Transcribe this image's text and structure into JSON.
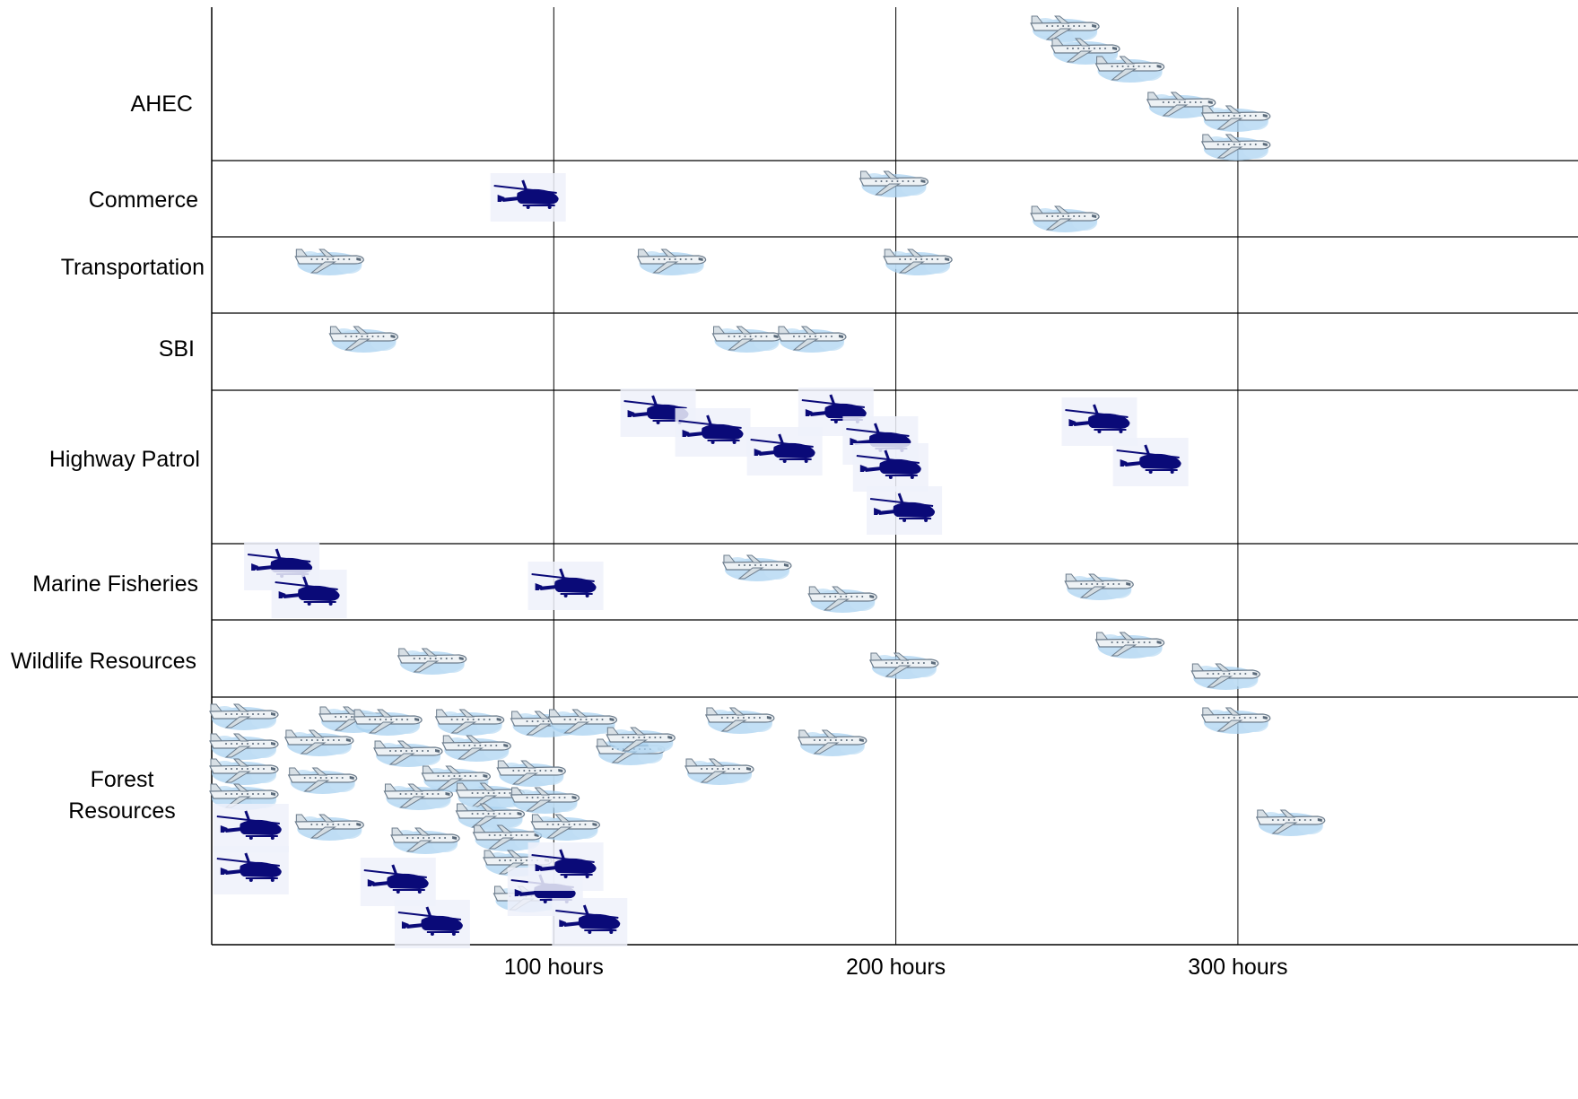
{
  "chart_data": {
    "type": "scatter",
    "title": "",
    "xlabel": "",
    "ylabel": "",
    "xlim": [
      0,
      350
    ],
    "x_ticks": [
      {
        "value": 100,
        "label": "100 hours"
      },
      {
        "value": 200,
        "label": "200 hours"
      },
      {
        "value": 300,
        "label": "300 hours"
      }
    ],
    "grid": true,
    "colors": {
      "helicopter": "#0a0a78",
      "airplane_body": "#e4ebef",
      "airplane_cloud": "#a9d2f0"
    },
    "categories": [
      {
        "label": "AHEC"
      },
      {
        "label": "Commerce"
      },
      {
        "label": "Transportation"
      },
      {
        "label": "SBI"
      },
      {
        "label": "Highway Patrol"
      },
      {
        "label": "Marine Fisheries"
      },
      {
        "label": "Wildlife Resources"
      },
      {
        "label": "Forest Resources"
      }
    ],
    "series": [
      {
        "type": "airplane",
        "points": [
          {
            "category": "AHEC",
            "x": 240
          },
          {
            "category": "AHEC",
            "x": 246
          },
          {
            "category": "AHEC",
            "x": 259
          },
          {
            "category": "AHEC",
            "x": 274
          },
          {
            "category": "AHEC",
            "x": 290
          },
          {
            "category": "AHEC",
            "x": 290
          },
          {
            "category": "Commerce",
            "x": 190
          },
          {
            "category": "Commerce",
            "x": 240
          },
          {
            "category": "Transportation",
            "x": 25
          },
          {
            "category": "Transportation",
            "x": 125
          },
          {
            "category": "Transportation",
            "x": 197
          },
          {
            "category": "SBI",
            "x": 35
          },
          {
            "category": "SBI",
            "x": 147
          },
          {
            "category": "SBI",
            "x": 166
          },
          {
            "category": "Marine Fisheries",
            "x": 150
          },
          {
            "category": "Marine Fisheries",
            "x": 175
          },
          {
            "category": "Marine Fisheries",
            "x": 250
          },
          {
            "category": "Wildlife Resources",
            "x": 55
          },
          {
            "category": "Wildlife Resources",
            "x": 193
          },
          {
            "category": "Wildlife Resources",
            "x": 259
          },
          {
            "category": "Wildlife Resources",
            "x": 287
          },
          {
            "category": "Forest Resources",
            "x": 0
          },
          {
            "category": "Forest Resources",
            "x": 0
          },
          {
            "category": "Forest Resources",
            "x": 0
          },
          {
            "category": "Forest Resources",
            "x": 0
          },
          {
            "category": "Forest Resources",
            "x": 22
          },
          {
            "category": "Forest Resources",
            "x": 23
          },
          {
            "category": "Forest Resources",
            "x": 25
          },
          {
            "category": "Forest Resources",
            "x": 32
          },
          {
            "category": "Forest Resources",
            "x": 42
          },
          {
            "category": "Forest Resources",
            "x": 48
          },
          {
            "category": "Forest Resources",
            "x": 51
          },
          {
            "category": "Forest Resources",
            "x": 53
          },
          {
            "category": "Forest Resources",
            "x": 62
          },
          {
            "category": "Forest Resources",
            "x": 66
          },
          {
            "category": "Forest Resources",
            "x": 68
          },
          {
            "category": "Forest Resources",
            "x": 72
          },
          {
            "category": "Forest Resources",
            "x": 72
          },
          {
            "category": "Forest Resources",
            "x": 77
          },
          {
            "category": "Forest Resources",
            "x": 80
          },
          {
            "category": "Forest Resources",
            "x": 83
          },
          {
            "category": "Forest Resources",
            "x": 84
          },
          {
            "category": "Forest Resources",
            "x": 88
          },
          {
            "category": "Forest Resources",
            "x": 88
          },
          {
            "category": "Forest Resources",
            "x": 94
          },
          {
            "category": "Forest Resources",
            "x": 99
          },
          {
            "category": "Forest Resources",
            "x": 113
          },
          {
            "category": "Forest Resources",
            "x": 116
          },
          {
            "category": "Forest Resources",
            "x": 139
          },
          {
            "category": "Forest Resources",
            "x": 145
          },
          {
            "category": "Forest Resources",
            "x": 172
          },
          {
            "category": "Forest Resources",
            "x": 290
          },
          {
            "category": "Forest Resources",
            "x": 306
          }
        ]
      },
      {
        "type": "helicopter",
        "points": [
          {
            "category": "Commerce",
            "x": 82
          },
          {
            "category": "Highway Patrol",
            "x": 120
          },
          {
            "category": "Highway Patrol",
            "x": 136
          },
          {
            "category": "Highway Patrol",
            "x": 157
          },
          {
            "category": "Highway Patrol",
            "x": 172
          },
          {
            "category": "Highway Patrol",
            "x": 185
          },
          {
            "category": "Highway Patrol",
            "x": 188
          },
          {
            "category": "Highway Patrol",
            "x": 192
          },
          {
            "category": "Highway Patrol",
            "x": 249
          },
          {
            "category": "Highway Patrol",
            "x": 264
          },
          {
            "category": "Marine Fisheries",
            "x": 10
          },
          {
            "category": "Marine Fisheries",
            "x": 18
          },
          {
            "category": "Marine Fisheries",
            "x": 93
          },
          {
            "category": "Forest Resources",
            "x": 1
          },
          {
            "category": "Forest Resources",
            "x": 1
          },
          {
            "category": "Forest Resources",
            "x": 44
          },
          {
            "category": "Forest Resources",
            "x": 54
          },
          {
            "category": "Forest Resources",
            "x": 87
          },
          {
            "category": "Forest Resources",
            "x": 93
          },
          {
            "category": "Forest Resources",
            "x": 100
          }
        ]
      }
    ]
  }
}
